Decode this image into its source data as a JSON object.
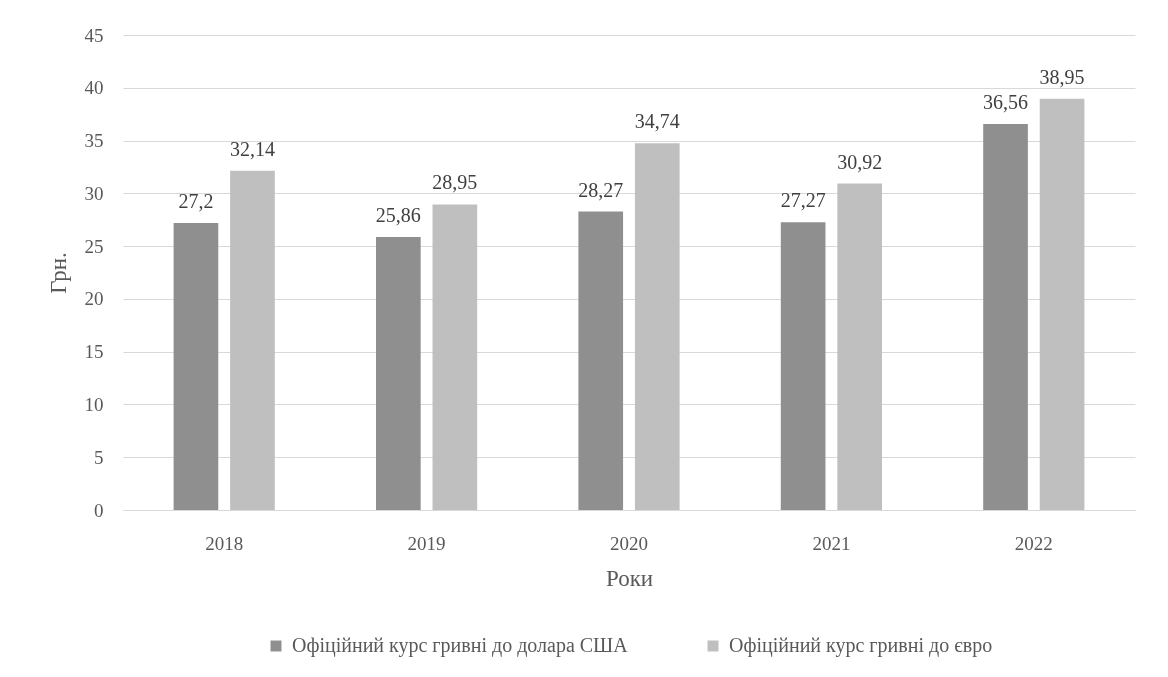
{
  "chart_data": {
    "type": "bar",
    "categories": [
      "2018",
      "2019",
      "2020",
      "2021",
      "2022"
    ],
    "series": [
      {
        "name": "Офіційний курс гривні до долара США",
        "color": "#8f8f8f",
        "values": [
          27.2,
          25.86,
          28.27,
          27.27,
          36.56
        ],
        "value_labels": [
          "27,2",
          "25,86",
          "28,27",
          "27,27",
          "36,56"
        ]
      },
      {
        "name": "Офіційний курс гривні до євро",
        "color": "#bfbfbf",
        "values": [
          32.14,
          28.95,
          34.74,
          30.92,
          38.95
        ],
        "value_labels": [
          "32,14",
          "28,95",
          "34,74",
          "30,92",
          "38,95"
        ]
      }
    ],
    "xlabel": "Роки",
    "ylabel": "Грн.",
    "ylim": [
      0,
      45
    ],
    "yticks": [
      0,
      5,
      10,
      15,
      20,
      25,
      30,
      35,
      40,
      45
    ],
    "grid": "y",
    "legend": "bottom"
  }
}
